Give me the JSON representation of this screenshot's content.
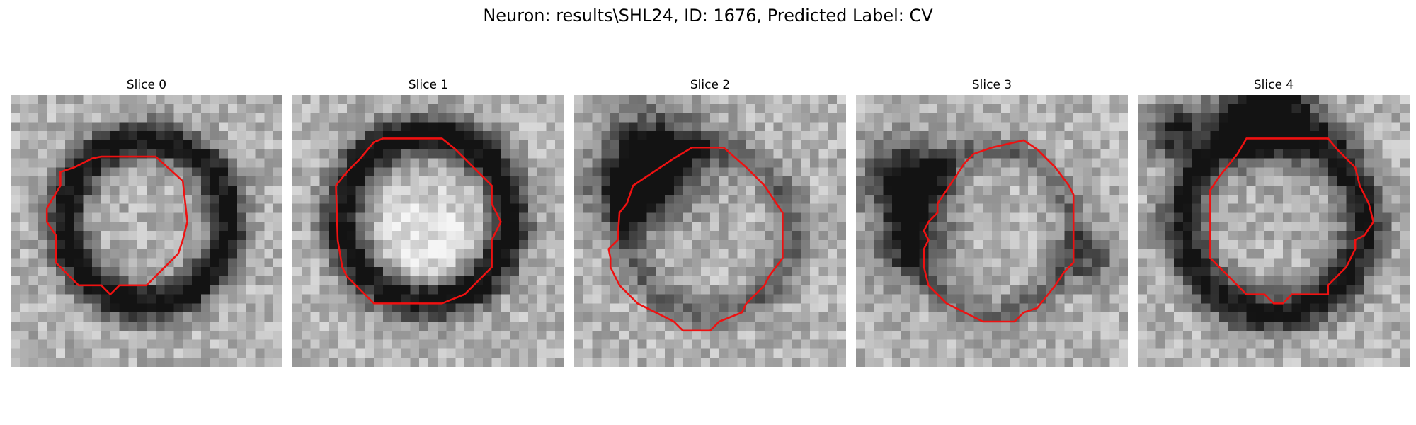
{
  "figure": {
    "title": "Neuron: results\\SHL24, ID: 1676, Predicted Label: CV"
  },
  "panels": [
    {
      "title": "Slice 0",
      "contour_color": "#ee1111"
    },
    {
      "title": "Slice 1",
      "contour_color": "#ee1111"
    },
    {
      "title": "Slice 2",
      "contour_color": "#ee1111"
    },
    {
      "title": "Slice 3",
      "contour_color": "#ee1111"
    },
    {
      "title": "Slice 4",
      "contour_color": "#ee1111"
    }
  ]
}
